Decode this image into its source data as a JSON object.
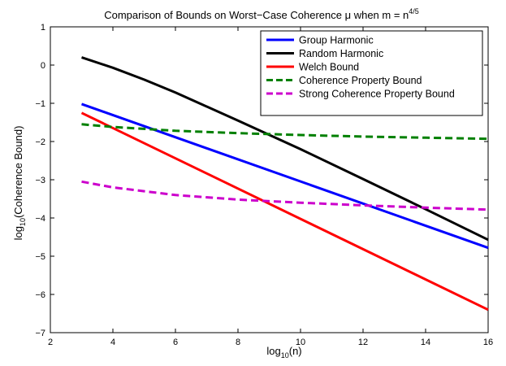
{
  "chart_data": {
    "type": "line",
    "title": "Comparison of Bounds on Worst−Case Coherence μ when m = n",
    "title_exponent": "4/5",
    "xlabel": "log",
    "xlabel_sub": "10",
    "xlabel_tail": "(n)",
    "ylabel": "log",
    "ylabel_sub": "10",
    "ylabel_tail": "(Coherence Bound)",
    "xlim": [
      2,
      16
    ],
    "ylim": [
      -7,
      1
    ],
    "xticks": [
      2,
      4,
      6,
      8,
      10,
      12,
      14,
      16
    ],
    "yticks": [
      -7,
      -6,
      -5,
      -4,
      -3,
      -2,
      -1,
      0,
      1
    ],
    "xtick_labels": [
      "2",
      "4",
      "6",
      "8",
      "10",
      "12",
      "14",
      "16"
    ],
    "ytick_labels": [
      "−7",
      "−6",
      "−5",
      "−4",
      "−3",
      "−2",
      "−1",
      "0",
      "1"
    ],
    "grid": false,
    "legend_position": "top-right",
    "series": [
      {
        "name": "Group Harmonic",
        "color": "#0000ff",
        "dash": "solid",
        "x": [
          3,
          16
        ],
        "y": [
          -1.02,
          -4.78
        ]
      },
      {
        "name": "Random Harmonic",
        "color": "#000000",
        "dash": "solid",
        "x": [
          3,
          4,
          5,
          6,
          8,
          10,
          12,
          14,
          16
        ],
        "y": [
          0.2,
          -0.07,
          -0.38,
          -0.72,
          -1.45,
          -2.2,
          -2.98,
          -3.77,
          -4.57
        ]
      },
      {
        "name": "Welch Bound",
        "color": "#ff0000",
        "dash": "solid",
        "x": [
          3,
          16
        ],
        "y": [
          -1.25,
          -6.4
        ]
      },
      {
        "name": "Coherence Property Bound",
        "color": "#008000",
        "dash": "dashed",
        "x": [
          3,
          4,
          6,
          8,
          10,
          12,
          14,
          16
        ],
        "y": [
          -1.55,
          -1.62,
          -1.72,
          -1.78,
          -1.83,
          -1.87,
          -1.9,
          -1.93
        ]
      },
      {
        "name": "Strong Coherence Property Bound",
        "color": "#cc00cc",
        "dash": "dashed",
        "x": [
          3,
          4,
          6,
          8,
          10,
          12,
          14,
          16
        ],
        "y": [
          -3.05,
          -3.2,
          -3.4,
          -3.52,
          -3.6,
          -3.67,
          -3.73,
          -3.78
        ]
      }
    ]
  }
}
